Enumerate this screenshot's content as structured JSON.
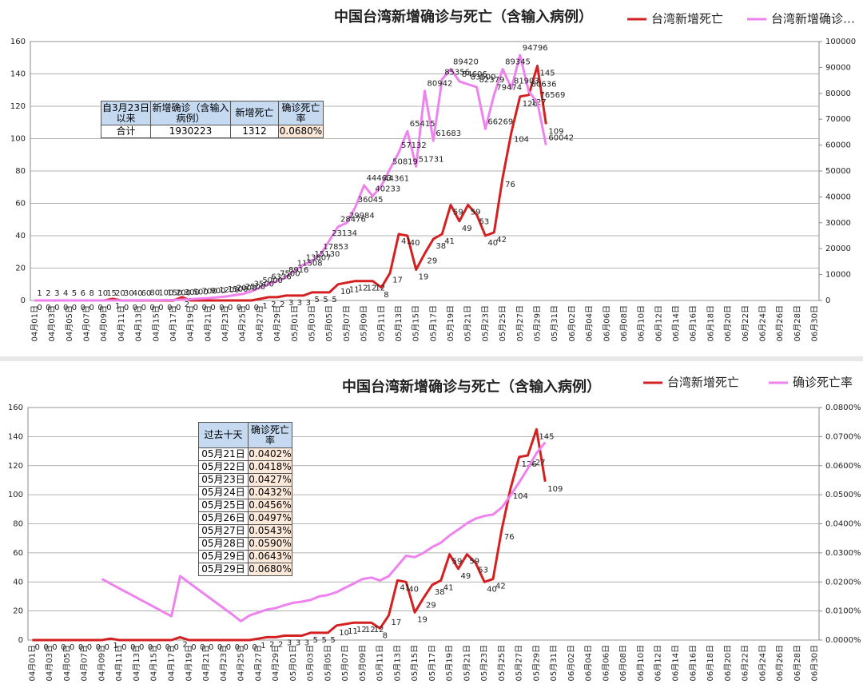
{
  "chart_data": [
    {
      "type": "line",
      "title": "中国台湾新增确诊与死亡（含输入病例）",
      "categories": [
        "04月01日",
        null,
        "04月03日",
        null,
        "04月05日",
        null,
        "04月07日",
        null,
        "04月09日",
        null,
        "04月11日",
        null,
        "04月13日",
        null,
        "04月15日",
        null,
        "04月17日",
        null,
        "04月19日",
        null,
        "04月21日",
        null,
        "04月23日",
        null,
        "04月25日",
        null,
        "04月27日",
        null,
        "04月29日",
        null,
        "05月01日",
        null,
        "05月03日",
        null,
        "05月05日",
        null,
        "05月07日",
        null,
        "05月09日",
        null,
        "05月11日",
        null,
        "05月13日",
        null,
        "05月15日",
        null,
        "05月17日",
        null,
        "05月19日",
        null,
        "05月21日",
        null,
        "05月23日",
        null,
        "05月25日",
        null,
        "05月27日",
        null,
        "05月29日",
        null,
        "05月31日",
        null,
        "06月02日",
        null,
        "06月04日",
        null,
        "06月06日",
        null,
        "06月08日",
        null,
        "06月10日",
        null,
        "06月12日",
        null,
        "06月14日",
        null,
        "06月16日",
        null,
        "06月18日",
        null,
        "06月20日",
        null,
        "06月22日",
        null,
        "06月24日",
        null,
        "06月26日",
        null,
        "06月28日",
        null,
        "06月30日"
      ],
      "series": [
        {
          "name": "台湾新增死亡",
          "color": "#d42020",
          "axis": "y",
          "data_labels": true,
          "values": [
            0,
            0,
            0,
            0,
            0,
            0,
            0,
            0,
            0,
            1,
            0,
            0,
            0,
            0,
            0,
            0,
            0,
            2,
            0,
            0,
            0,
            0,
            0,
            0,
            0,
            0,
            1,
            2,
            2,
            3,
            3,
            3,
            5,
            5,
            5,
            10,
            11,
            12,
            12,
            12,
            8,
            17,
            41,
            40,
            19,
            29,
            38,
            41,
            59,
            49,
            59,
            53,
            40,
            42,
            76,
            104,
            126,
            127,
            145,
            109,
            null,
            null,
            null,
            null,
            null,
            null,
            null,
            null,
            null,
            null,
            null,
            null,
            null,
            null,
            null,
            null,
            null,
            null,
            null,
            null,
            null,
            null,
            null,
            null,
            null,
            null,
            null,
            null,
            null,
            null,
            null
          ]
        },
        {
          "name": "台湾新增确诊…",
          "color": "#ee82ee",
          "axis": "y2",
          "data_labels": true,
          "values": [
            1,
            2,
            3,
            4,
            5,
            6,
            8,
            10,
            15,
            20,
            30,
            40,
            60,
            80,
            100,
            150,
            200,
            300,
            500,
            700,
            900,
            1200,
            1500,
            2000,
            2500,
            3500,
            5000,
            6336,
            7500,
            8916,
            11508,
            13807,
            15130,
            17853,
            23134,
            28476,
            29984,
            36045,
            44463,
            40233,
            44361,
            50819,
            57132,
            65415,
            51731,
            80942,
            61683,
            85356,
            89420,
            84606,
            83500,
            82379,
            66269,
            79474,
            89345,
            81903,
            94796,
            80636,
            76569,
            60042,
            null,
            null,
            null,
            null,
            null,
            null,
            null,
            null,
            null,
            null,
            null,
            null,
            null,
            null,
            null,
            null,
            null,
            null,
            null,
            null,
            null,
            null,
            null,
            null,
            null,
            null,
            null,
            null,
            null,
            null,
            null
          ]
        }
      ],
      "ylim": [
        0,
        160
      ],
      "yticks": [
        0,
        20,
        40,
        60,
        80,
        100,
        120,
        140,
        160
      ],
      "y2lim": [
        0,
        100000
      ],
      "y2ticks": [
        0,
        10000,
        20000,
        30000,
        40000,
        50000,
        60000,
        70000,
        80000,
        90000,
        100000
      ],
      "grid": true,
      "table": {
        "headers": [
          "自3月23日以来",
          "新增确诊（含输入病例）",
          "新增死亡",
          "确诊死亡率"
        ],
        "rows": [
          [
            "合计",
            "1930223",
            "1312",
            "0.0680%"
          ]
        ]
      }
    },
    {
      "type": "line",
      "title": "中国台湾新增确诊与死亡（含输入病例）",
      "categories": [
        "04月01日",
        null,
        "04月03日",
        null,
        "04月05日",
        null,
        "04月07日",
        null,
        "04月09日",
        null,
        "04月11日",
        null,
        "04月13日",
        null,
        "04月15日",
        null,
        "04月17日",
        null,
        "04月19日",
        null,
        "04月21日",
        null,
        "04月23日",
        null,
        "04月25日",
        null,
        "04月27日",
        null,
        "04月29日",
        null,
        "05月01日",
        null,
        "05月03日",
        null,
        "05月05日",
        null,
        "05月07日",
        null,
        "05月09日",
        null,
        "05月11日",
        null,
        "05月13日",
        null,
        "05月15日",
        null,
        "05月17日",
        null,
        "05月19日",
        null,
        "05月21日",
        null,
        "05月23日",
        null,
        "05月25日",
        null,
        "05月27日",
        null,
        "05月29日",
        null,
        "05月31日",
        null,
        "06月02日",
        null,
        "06月04日",
        null,
        "06月06日",
        null,
        "06月08日",
        null,
        "06月10日",
        null,
        "06月12日",
        null,
        "06月14日",
        null,
        "06月16日",
        null,
        "06月18日",
        null,
        "06月20日",
        null,
        "06月22日",
        null,
        "06月24日",
        null,
        "06月26日",
        null,
        "06月28日",
        null,
        "06月30日"
      ],
      "series": [
        {
          "name": "台湾新增死亡",
          "color": "#d42020",
          "axis": "y",
          "data_labels": true,
          "values": [
            0,
            0,
            0,
            0,
            0,
            0,
            0,
            0,
            0,
            1,
            0,
            0,
            0,
            0,
            0,
            0,
            0,
            2,
            0,
            0,
            0,
            0,
            0,
            0,
            0,
            0,
            1,
            2,
            2,
            3,
            3,
            3,
            5,
            5,
            5,
            10,
            11,
            12,
            12,
            12,
            8,
            17,
            41,
            40,
            19,
            29,
            38,
            41,
            59,
            49,
            59,
            53,
            40,
            42,
            76,
            104,
            126,
            127,
            145,
            109,
            null,
            null,
            null,
            null,
            null,
            null,
            null,
            null,
            null,
            null,
            null,
            null,
            null,
            null,
            null,
            null,
            null,
            null,
            null,
            null,
            null,
            null,
            null,
            null,
            null,
            null,
            null,
            null,
            null,
            null,
            null
          ]
        },
        {
          "name": "确诊死亡率",
          "color": "#ee82ee",
          "axis": "y2",
          "data_labels": false,
          "values": [
            null,
            null,
            null,
            null,
            null,
            null,
            null,
            null,
            0.021,
            0.0194,
            0.0178,
            0.0162,
            0.0146,
            0.013,
            0.0114,
            0.0098,
            0.0082,
            0.022,
            0.0198,
            0.0176,
            0.0154,
            0.0132,
            0.011,
            0.0088,
            0.0065,
            0.0085,
            0.0095,
            0.0105,
            0.011,
            0.012,
            0.0128,
            0.0132,
            0.0138,
            0.015,
            0.0155,
            0.0165,
            0.018,
            0.0195,
            0.021,
            0.0215,
            0.0205,
            0.022,
            0.0255,
            0.029,
            0.0285,
            0.03,
            0.032,
            0.0335,
            0.036,
            0.038,
            0.0402,
            0.0418,
            0.0427,
            0.0432,
            0.0456,
            0.0497,
            0.0543,
            0.059,
            0.0643,
            0.068,
            null,
            null,
            null,
            null,
            null,
            null,
            null,
            null,
            null,
            null,
            null,
            null,
            null,
            null,
            null,
            null,
            null,
            null,
            null,
            null,
            null,
            null,
            null,
            null,
            null,
            null,
            null,
            null,
            null,
            null,
            null
          ]
        }
      ],
      "ylim": [
        0,
        160
      ],
      "yticks": [
        0,
        20,
        40,
        60,
        80,
        100,
        120,
        140,
        160
      ],
      "y2lim": [
        0,
        0.08
      ],
      "y2ticks": [
        {
          "value": 0,
          "label": "0.0000%"
        },
        {
          "value": 0.01,
          "label": "0.0100%"
        },
        {
          "value": 0.02,
          "label": "0.0200%"
        },
        {
          "value": 0.03,
          "label": "0.0300%"
        },
        {
          "value": 0.04,
          "label": "0.0400%"
        },
        {
          "value": 0.05,
          "label": "0.0500%"
        },
        {
          "value": 0.06,
          "label": "0.0600%"
        },
        {
          "value": 0.07,
          "label": "0.0700%"
        },
        {
          "value": 0.08,
          "label": "0.0800%"
        }
      ],
      "grid": true,
      "table": {
        "headers": [
          "过去十天",
          "确诊死亡率"
        ],
        "rows": [
          [
            "05月21日",
            "0.0402%"
          ],
          [
            "05月22日",
            "0.0418%"
          ],
          [
            "05月23日",
            "0.0427%"
          ],
          [
            "05月24日",
            "0.0432%"
          ],
          [
            "05月25日",
            "0.0456%"
          ],
          [
            "05月26日",
            "0.0497%"
          ],
          [
            "05月27日",
            "0.0543%"
          ],
          [
            "05月28日",
            "0.0590%"
          ],
          [
            "05月29日",
            "0.0643%"
          ],
          [
            "05月29日",
            "0.0680%"
          ]
        ]
      }
    }
  ]
}
